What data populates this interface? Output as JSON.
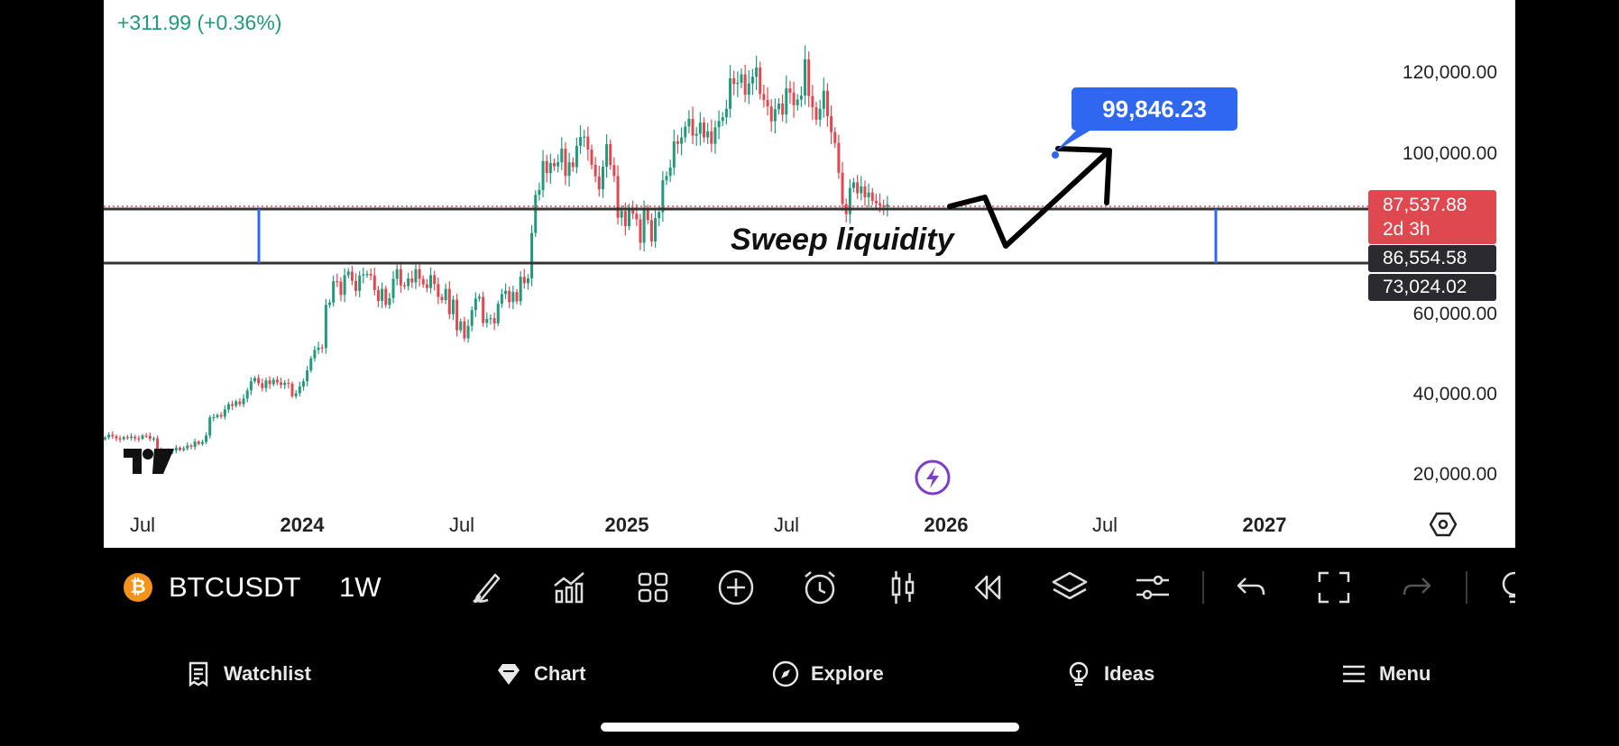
{
  "change_text": "+311.99 (+0.36%)",
  "y_axis_labels": [
    "120,000.00",
    "100,000.00",
    "60,000.00",
    "40,000.00",
    "20,000.00"
  ],
  "x_axis_labels": [
    {
      "label": "Jul",
      "bold": false
    },
    {
      "label": "2024",
      "bold": true
    },
    {
      "label": "Jul",
      "bold": false
    },
    {
      "label": "2025",
      "bold": true
    },
    {
      "label": "Jul",
      "bold": false
    },
    {
      "label": "2026",
      "bold": true
    },
    {
      "label": "Jul",
      "bold": false
    },
    {
      "label": "2027",
      "bold": true
    }
  ],
  "price_badges": {
    "last_price": "87,537.88",
    "countdown": "2d 3h",
    "upper_level": "86,554.58",
    "lower_level": "73,024.02"
  },
  "annotations": {
    "target_label": "99,846.23",
    "sweep_text": "Sweep liquidity"
  },
  "colors": {
    "up": "#22997a",
    "down": "#e04850",
    "accent_blue": "#2f67f0",
    "panel_bg": "#ffffff",
    "app_bg": "#000000"
  },
  "toolbar": {
    "symbol": "BTCUSDT",
    "interval": "1W",
    "symbol_icon": "bitcoin-icon",
    "tools": [
      "pen-icon",
      "indicators-icon",
      "layout-grid-icon",
      "add-icon",
      "alert-clock-icon",
      "candles-icon",
      "replay-icon",
      "layers-icon",
      "settings-sliders-icon",
      "undo-icon",
      "fullscreen-icon",
      "redo-icon",
      "ideas-bulb-icon"
    ]
  },
  "bottom_nav": [
    {
      "label": "Watchlist",
      "icon": "watchlist-icon"
    },
    {
      "label": "Chart",
      "icon": "chart-diamond-icon"
    },
    {
      "label": "Explore",
      "icon": "compass-icon"
    },
    {
      "label": "Ideas",
      "icon": "bulb-icon"
    },
    {
      "label": "Menu",
      "icon": "hamburger-icon"
    }
  ],
  "chart_data": {
    "type": "candlestick",
    "symbol": "BTCUSDT",
    "interval": "1W",
    "ylim": [
      5000,
      135000
    ],
    "horizontal_levels": [
      86554.58,
      73024.02
    ],
    "last_price": 87537.88,
    "projection_target": 99846.23,
    "closes": [
      29500,
      30200,
      29800,
      29300,
      29100,
      29600,
      29400,
      29700,
      29300,
      29200,
      30000,
      29900,
      29200,
      29300,
      26700,
      26200,
      26100,
      26000,
      26300,
      27000,
      26400,
      26800,
      27500,
      27200,
      28500,
      27900,
      28400,
      30000,
      34500,
      34600,
      35100,
      34700,
      36500,
      37800,
      37400,
      38500,
      37800,
      39200,
      41200,
      43500,
      44300,
      43000,
      41800,
      43700,
      42800,
      43900,
      43200,
      42600,
      43100,
      42900,
      39800,
      40500,
      42200,
      43500,
      46200,
      49200,
      51300,
      51900,
      51800,
      62500,
      63100,
      68400,
      68300,
      65000,
      69900,
      70800,
      68500,
      66000,
      69800,
      70100,
      70200,
      69800,
      66200,
      63500,
      66500,
      62500,
      64200,
      69000,
      71400,
      67400,
      67200,
      69100,
      68100,
      71400,
      69000,
      67600,
      66700,
      69900,
      67700,
      64500,
      63700,
      66500,
      60200,
      63800,
      56200,
      58400,
      54200,
      57300,
      61200,
      64100,
      64500,
      58000,
      59000,
      59200,
      57900,
      62800,
      65200,
      66000,
      63200,
      65700,
      63400,
      69500,
      67900,
      69100,
      80400,
      89900,
      91100,
      98300,
      95300,
      97800,
      97000,
      98000,
      101400,
      94600,
      98000,
      96800,
      102100,
      104300,
      104400,
      101200,
      97400,
      94500,
      91300,
      96900,
      102500,
      97300,
      94600,
      84200,
      85900,
      82100,
      86700,
      85200,
      83800,
      78000,
      86400,
      83600,
      78300,
      84100,
      85600,
      93500,
      94600,
      96700,
      103200,
      102600,
      104200,
      106900,
      108800,
      104600,
      105100,
      107900,
      104200,
      105700,
      102600,
      106700,
      108300,
      109200,
      111300,
      118900,
      117500,
      117800,
      119900,
      114800,
      117600,
      119300,
      121600,
      115000,
      113500,
      111900,
      108200,
      111200,
      112600,
      109900,
      116400,
      115300,
      112200,
      113600,
      114600,
      123600,
      114500,
      111700,
      108600,
      111300,
      115800,
      109500,
      105500,
      102800,
      95400,
      87600,
      85100,
      91600,
      93000,
      90300,
      92000,
      89300,
      90500,
      88400,
      87800,
      87300,
      86900,
      87537.88
    ]
  }
}
